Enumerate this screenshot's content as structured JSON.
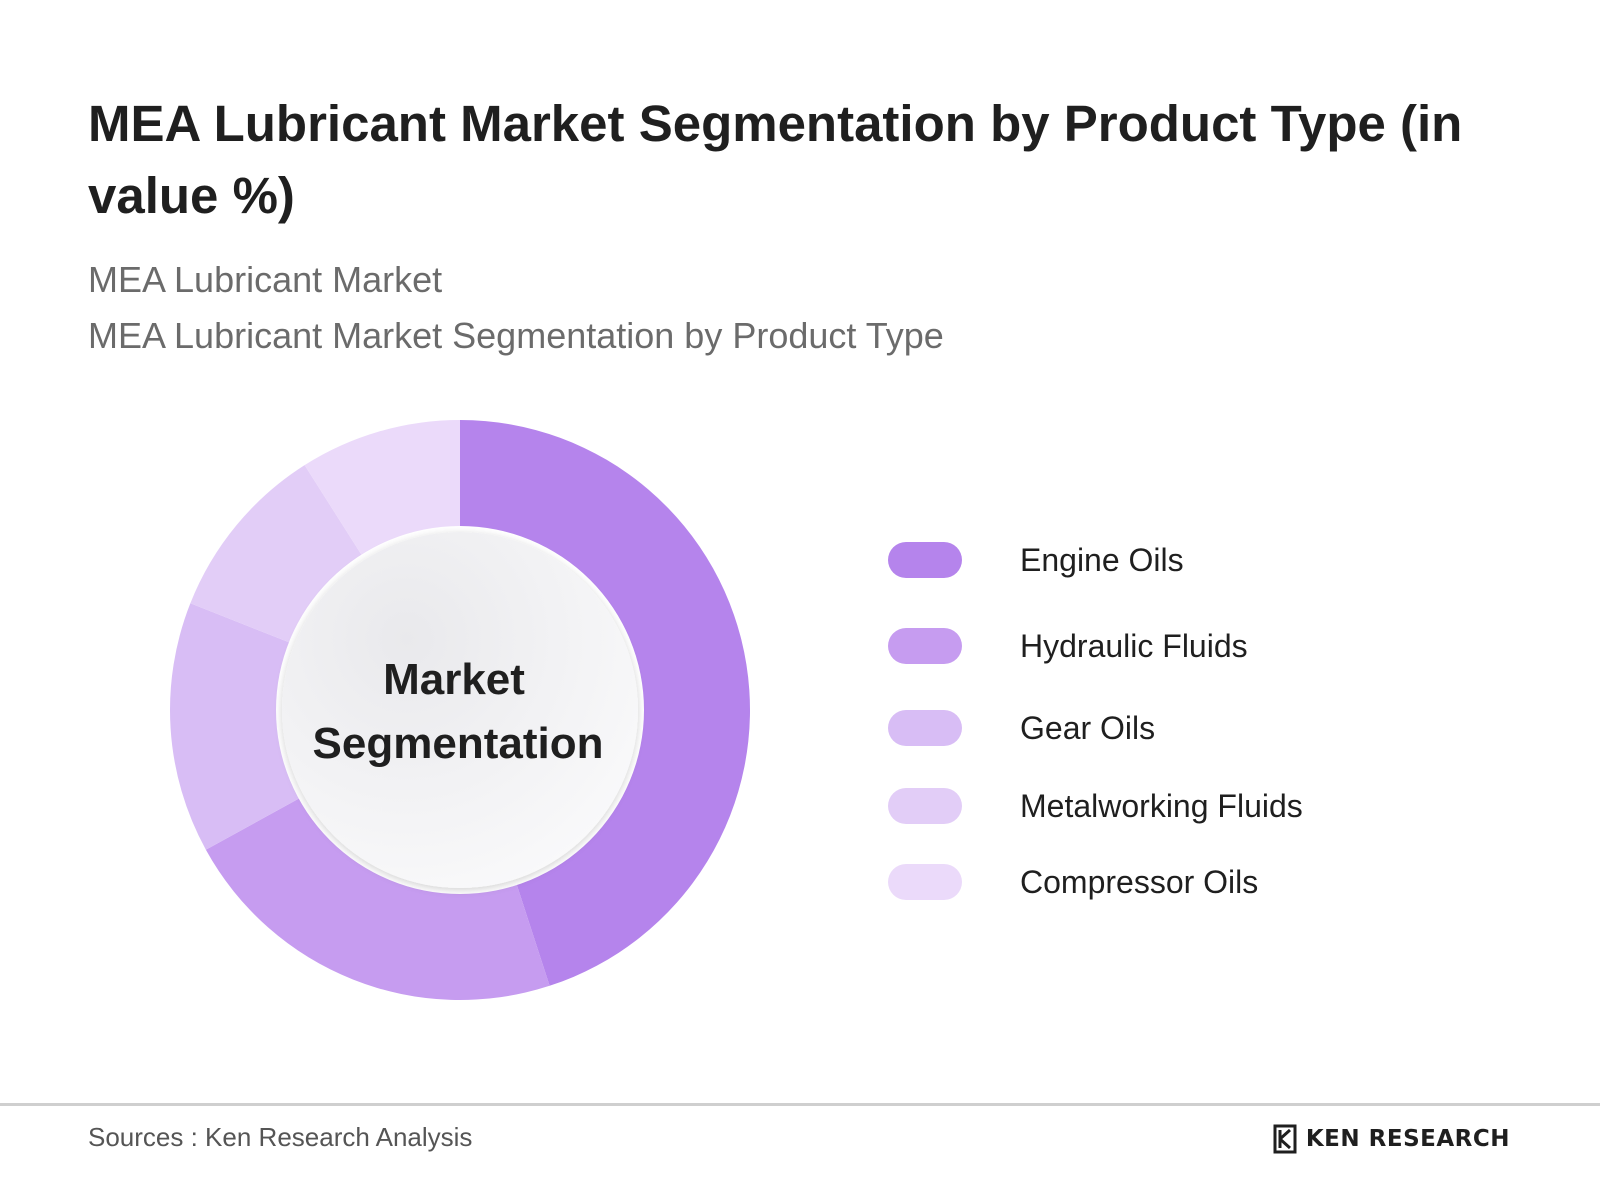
{
  "header": {
    "title": "MEA Lubricant Market Segmentation by Product Type (in value %)",
    "subtitle_1": "MEA Lubricant Market",
    "subtitle_2": "MEA Lubricant Market Segmentation by Product Type"
  },
  "chart_data": {
    "type": "pie",
    "hole": true,
    "center_label_line1": "Market",
    "center_label_line2": "Segmentation",
    "categories": [
      "Engine Oils",
      "Hydraulic Fluids",
      "Gear Oils",
      "Metalworking Fluids",
      "Compressor Oils"
    ],
    "values": [
      45,
      22,
      14,
      10,
      9
    ],
    "colors": [
      "#b584ec",
      "#c69cf0",
      "#d8bdf5",
      "#e2cdf7",
      "#ebdafa"
    ],
    "legend_position": "right"
  },
  "footer": {
    "source": "Sources : Ken Research Analysis",
    "brand": "KEN RESEARCH",
    "brand_icon": "ken-research-logo-icon"
  }
}
